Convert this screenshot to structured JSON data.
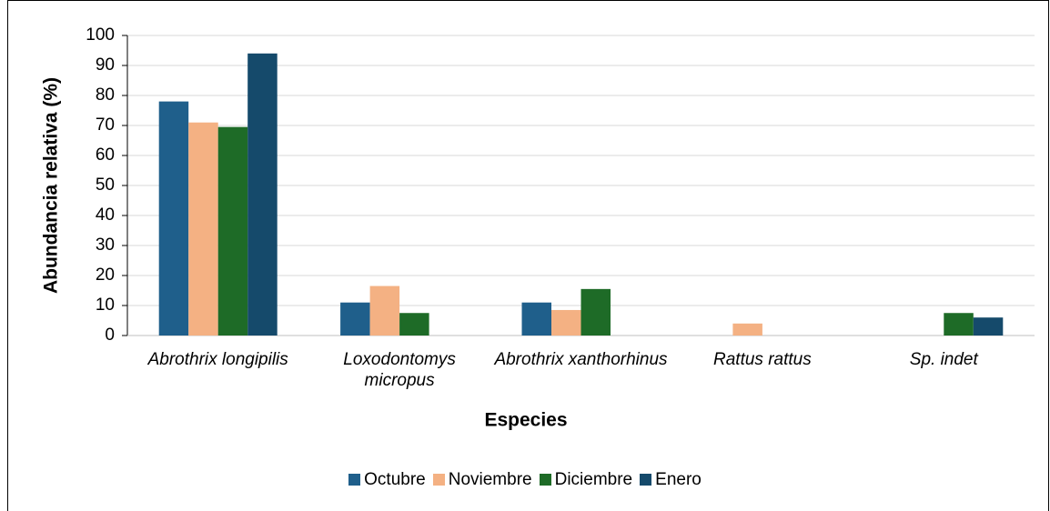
{
  "chart_data": {
    "type": "bar",
    "x_label": "Especies",
    "y_label": "Abundancia relativa (%)",
    "categories": [
      "Abrothrix longipilis",
      "Loxodontomys micropus",
      "Abrothrix xanthorhinus",
      "Rattus rattus",
      "Sp. indet"
    ],
    "series": [
      {
        "name": "Octubre",
        "color": "#1f5f8b",
        "values": [
          78,
          11,
          11,
          0,
          0
        ]
      },
      {
        "name": "Noviembre",
        "color": "#f4b183",
        "values": [
          71,
          16.5,
          8.5,
          4,
          0
        ]
      },
      {
        "name": "Diciembre",
        "color": "#1e6b27",
        "values": [
          69.5,
          7.5,
          15.5,
          0,
          7.5
        ]
      },
      {
        "name": "Enero",
        "color": "#154a6b",
        "values": [
          94,
          0,
          0,
          0,
          6
        ]
      }
    ],
    "ylim": [
      0,
      100
    ],
    "yticks": [
      0,
      10,
      20,
      30,
      40,
      50,
      60,
      70,
      80,
      90,
      100
    ],
    "grid": true,
    "legend": "bottom"
  }
}
